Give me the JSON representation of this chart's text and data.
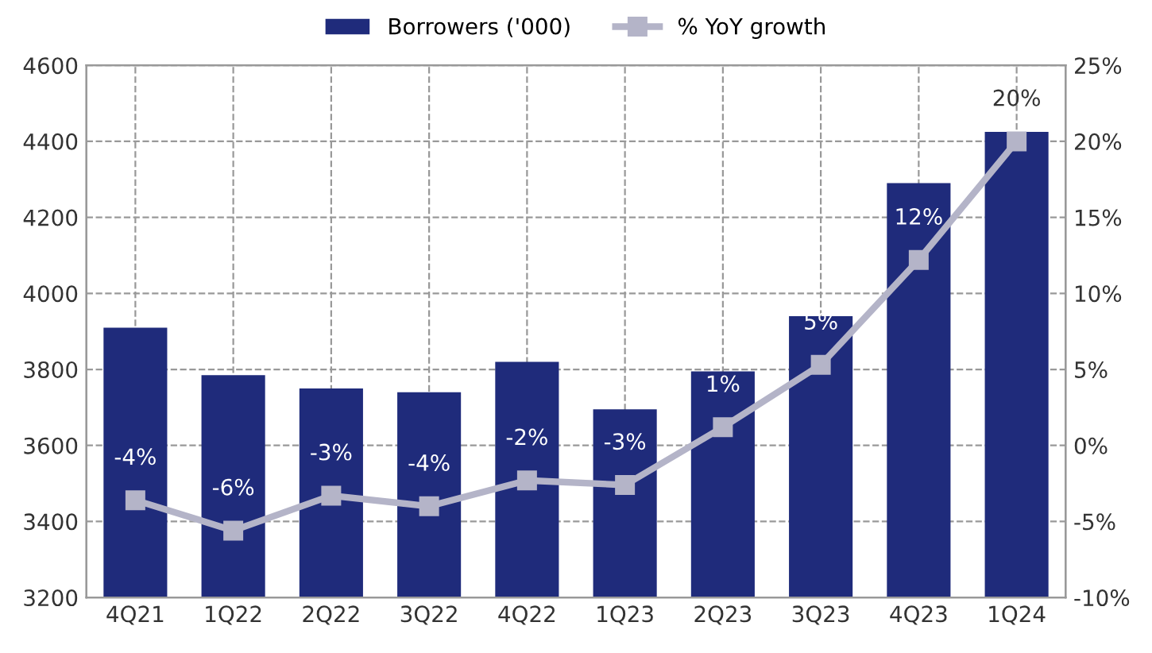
{
  "chart_data": {
    "type": "bar",
    "categories": [
      "4Q21",
      "1Q22",
      "2Q22",
      "3Q22",
      "4Q22",
      "1Q23",
      "2Q23",
      "3Q23",
      "4Q23",
      "1Q24"
    ],
    "series": [
      {
        "name": "Borrowers ('000)",
        "color": "#1f2b7b",
        "values": [
          3910,
          3785,
          3750,
          3740,
          3820,
          3695,
          3795,
          3940,
          4290,
          4425
        ]
      },
      {
        "name": "% YoY growth",
        "type": "line",
        "axis": "y2",
        "color": "#b4b4c8",
        "marker": "square",
        "values": [
          -3.6,
          -5.6,
          -3.3,
          -4.0,
          -2.3,
          -2.6,
          1.2,
          5.3,
          12.2,
          20.0
        ],
        "value_labels": [
          "-4%",
          "-6%",
          "-3%",
          "-4%",
          "-2%",
          "-3%",
          "1%",
          "5%",
          "12%",
          "20%"
        ]
      }
    ],
    "ylim": [
      3200,
      4600
    ],
    "yticks": [
      3200,
      3400,
      3600,
      3800,
      4000,
      4200,
      4400,
      4600
    ],
    "y2lim": [
      -10,
      25
    ],
    "y2ticks": [
      {
        "value": -10,
        "label": "-10%"
      },
      {
        "value": -5,
        "label": "-5%"
      },
      {
        "value": 0,
        "label": "0%"
      },
      {
        "value": 5,
        "label": "5%"
      },
      {
        "value": 10,
        "label": "10%"
      },
      {
        "value": 15,
        "label": "15%"
      },
      {
        "value": 20,
        "label": "20%"
      },
      {
        "value": 25,
        "label": "25%"
      }
    ],
    "grid": true,
    "legend": "top"
  }
}
